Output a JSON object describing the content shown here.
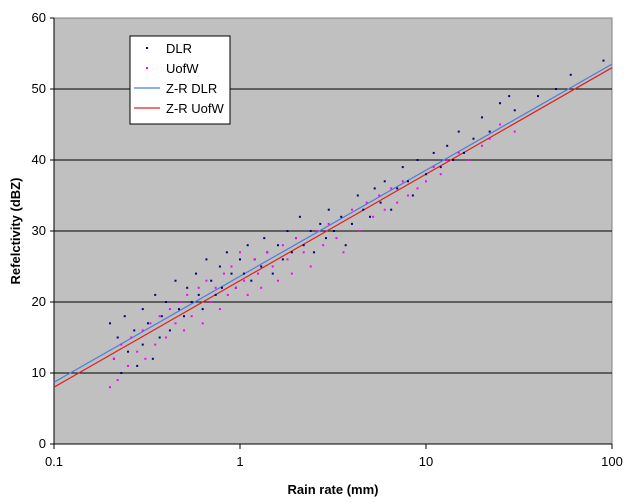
{
  "chart_data": {
    "type": "scatter",
    "xlabel": "Rain rate (mm)",
    "ylabel": "Refelctivity (dBZ)",
    "x_scale": "log",
    "xlim": [
      0.1,
      100
    ],
    "ylim": [
      0,
      60
    ],
    "x_ticks": [
      "0.1",
      "1",
      "10",
      "100"
    ],
    "y_ticks": [
      "0",
      "10",
      "20",
      "30",
      "40",
      "50",
      "60"
    ],
    "grid": "horizontal",
    "plot_background": "#c0c0c0",
    "legend_position": "top-left",
    "series": [
      {
        "name": "DLR",
        "kind": "scatter",
        "color": "#000080",
        "points": [
          [
            0.2,
            17
          ],
          [
            0.21,
            12
          ],
          [
            0.22,
            15
          ],
          [
            0.23,
            10
          ],
          [
            0.24,
            18
          ],
          [
            0.25,
            13
          ],
          [
            0.27,
            16
          ],
          [
            0.28,
            11
          ],
          [
            0.3,
            19
          ],
          [
            0.3,
            14
          ],
          [
            0.32,
            17
          ],
          [
            0.34,
            12
          ],
          [
            0.35,
            21
          ],
          [
            0.37,
            15
          ],
          [
            0.38,
            18
          ],
          [
            0.4,
            20
          ],
          [
            0.42,
            16
          ],
          [
            0.45,
            23
          ],
          [
            0.47,
            19
          ],
          [
            0.5,
            18
          ],
          [
            0.52,
            22
          ],
          [
            0.55,
            20
          ],
          [
            0.58,
            24
          ],
          [
            0.6,
            21
          ],
          [
            0.63,
            19
          ],
          [
            0.66,
            26
          ],
          [
            0.7,
            23
          ],
          [
            0.74,
            21
          ],
          [
            0.78,
            25
          ],
          [
            0.8,
            22
          ],
          [
            0.85,
            27
          ],
          [
            0.9,
            24
          ],
          [
            0.95,
            22
          ],
          [
            1.0,
            26
          ],
          [
            1.05,
            24
          ],
          [
            1.1,
            28
          ],
          [
            1.15,
            23
          ],
          [
            1.2,
            26
          ],
          [
            1.3,
            25
          ],
          [
            1.35,
            29
          ],
          [
            1.4,
            27
          ],
          [
            1.5,
            24
          ],
          [
            1.6,
            28
          ],
          [
            1.7,
            26
          ],
          [
            1.8,
            30
          ],
          [
            1.9,
            27
          ],
          [
            2.0,
            29
          ],
          [
            2.1,
            32
          ],
          [
            2.2,
            28
          ],
          [
            2.4,
            30
          ],
          [
            2.5,
            27
          ],
          [
            2.7,
            31
          ],
          [
            2.9,
            29
          ],
          [
            3.0,
            33
          ],
          [
            3.2,
            30
          ],
          [
            3.5,
            32
          ],
          [
            3.7,
            28
          ],
          [
            4.0,
            31
          ],
          [
            4.3,
            35
          ],
          [
            4.6,
            33
          ],
          [
            5.0,
            32
          ],
          [
            5.3,
            36
          ],
          [
            5.7,
            34
          ],
          [
            6.0,
            37
          ],
          [
            6.5,
            33
          ],
          [
            7.0,
            36
          ],
          [
            7.5,
            39
          ],
          [
            8.0,
            37
          ],
          [
            8.5,
            35
          ],
          [
            9.0,
            40
          ],
          [
            10.0,
            38
          ],
          [
            11.0,
            41
          ],
          [
            12.0,
            39
          ],
          [
            13.0,
            42
          ],
          [
            14.0,
            40
          ],
          [
            15.0,
            44
          ],
          [
            16.0,
            41
          ],
          [
            18.0,
            43
          ],
          [
            20.0,
            46
          ],
          [
            22.0,
            44
          ],
          [
            25.0,
            48
          ],
          [
            28.0,
            49
          ],
          [
            30.0,
            47
          ],
          [
            40.0,
            49
          ],
          [
            50.0,
            50
          ],
          [
            60.0,
            52
          ],
          [
            90.0,
            54
          ]
        ]
      },
      {
        "name": "UofW",
        "kind": "scatter",
        "color": "#ff00ff",
        "points": [
          [
            0.2,
            8
          ],
          [
            0.21,
            12
          ],
          [
            0.22,
            9
          ],
          [
            0.23,
            14
          ],
          [
            0.25,
            11
          ],
          [
            0.26,
            15
          ],
          [
            0.28,
            13
          ],
          [
            0.3,
            16
          ],
          [
            0.31,
            12
          ],
          [
            0.33,
            17
          ],
          [
            0.35,
            14
          ],
          [
            0.37,
            18
          ],
          [
            0.4,
            15
          ],
          [
            0.42,
            19
          ],
          [
            0.45,
            17
          ],
          [
            0.48,
            20
          ],
          [
            0.5,
            16
          ],
          [
            0.52,
            21
          ],
          [
            0.55,
            18
          ],
          [
            0.6,
            22
          ],
          [
            0.63,
            17
          ],
          [
            0.66,
            23
          ],
          [
            0.7,
            20
          ],
          [
            0.74,
            22
          ],
          [
            0.78,
            19
          ],
          [
            0.82,
            24
          ],
          [
            0.86,
            21
          ],
          [
            0.9,
            25
          ],
          [
            0.95,
            22
          ],
          [
            1.0,
            27
          ],
          [
            1.05,
            23
          ],
          [
            1.1,
            21
          ],
          [
            1.2,
            26
          ],
          [
            1.25,
            24
          ],
          [
            1.3,
            22
          ],
          [
            1.4,
            27
          ],
          [
            1.5,
            25
          ],
          [
            1.6,
            23
          ],
          [
            1.7,
            28
          ],
          [
            1.8,
            26
          ],
          [
            1.9,
            24
          ],
          [
            2.0,
            29
          ],
          [
            2.2,
            27
          ],
          [
            2.4,
            25
          ],
          [
            2.6,
            30
          ],
          [
            2.8,
            28
          ],
          [
            3.0,
            31
          ],
          [
            3.3,
            29
          ],
          [
            3.6,
            27
          ],
          [
            4.0,
            33
          ],
          [
            4.4,
            30
          ],
          [
            4.8,
            34
          ],
          [
            5.2,
            32
          ],
          [
            5.6,
            35
          ],
          [
            6.0,
            33
          ],
          [
            6.5,
            36
          ],
          [
            7.0,
            34
          ],
          [
            7.5,
            37
          ],
          [
            8.0,
            35
          ],
          [
            9.0,
            36
          ],
          [
            10.0,
            37
          ],
          [
            11.0,
            39
          ],
          [
            12.0,
            38
          ],
          [
            13.0,
            40
          ],
          [
            15.0,
            41
          ],
          [
            17.0,
            40
          ],
          [
            20.0,
            42
          ],
          [
            22.0,
            43
          ],
          [
            25.0,
            45
          ],
          [
            30.0,
            44
          ]
        ]
      },
      {
        "name": "Z-R DLR",
        "kind": "line",
        "color": "#4a7ed8",
        "points": [
          [
            0.1,
            8.7
          ],
          [
            100,
            53.5
          ]
        ]
      },
      {
        "name": "Z-R UofW",
        "kind": "line",
        "color": "#e02020",
        "points": [
          [
            0.1,
            8.0
          ],
          [
            100,
            53.0
          ]
        ]
      }
    ]
  }
}
